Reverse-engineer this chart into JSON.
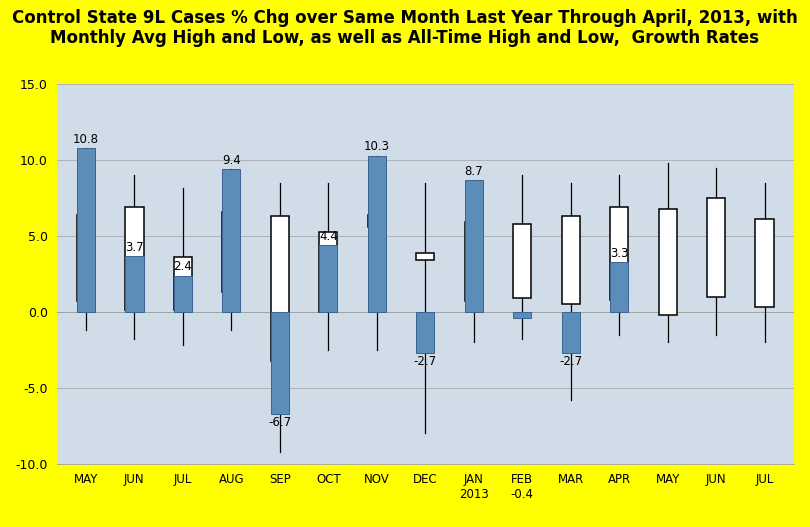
{
  "title": "Control State 9L Cases % Chg over Same Month Last Year Through April, 2013, with\nMonthly Avg High and Low, as well as All-Time High and Low,  Growth Rates",
  "title_fontsize": 12,
  "background_color": "#FFFF00",
  "plot_bg_color": "#D0DCE8",
  "ylim": [
    -10.0,
    15.0
  ],
  "yticks": [
    -10.0,
    -5.0,
    0.0,
    5.0,
    10.0,
    15.0
  ],
  "months": [
    "MAY",
    "JUN",
    "JUL",
    "AUG",
    "SEP",
    "OCT",
    "NOV",
    "DEC",
    "JAN\n2013",
    "FEB\n-0.4",
    "MAR",
    "APR",
    "MAY",
    "JUN",
    "JUL"
  ],
  "bar_values": [
    10.8,
    3.7,
    2.4,
    9.4,
    -6.7,
    4.4,
    10.3,
    -2.7,
    8.7,
    -0.4,
    -2.7,
    3.3,
    null,
    null,
    null
  ],
  "bar_color": "#5B8DB8",
  "bar_edge_color": "#3A6490",
  "bar_width": 0.38,
  "box_low": [
    0.7,
    0.1,
    0.1,
    1.3,
    -3.2,
    0.0,
    5.6,
    3.4,
    0.7,
    0.9,
    0.5,
    0.8,
    -0.2,
    1.0,
    0.3
  ],
  "box_high": [
    6.4,
    6.9,
    3.6,
    6.6,
    6.3,
    5.3,
    6.4,
    3.9,
    5.9,
    5.8,
    6.3,
    6.9,
    6.8,
    7.5,
    6.1
  ],
  "whisker_low": [
    -1.2,
    -1.8,
    -2.2,
    -1.2,
    -9.2,
    -2.5,
    -2.5,
    -8.0,
    -2.0,
    -1.8,
    -5.8,
    -1.5,
    -2.0,
    -1.5,
    -2.0
  ],
  "whisker_high": [
    10.8,
    9.0,
    8.2,
    9.4,
    8.5,
    8.5,
    10.3,
    8.5,
    8.7,
    9.0,
    8.5,
    9.0,
    9.8,
    9.5,
    8.5
  ],
  "bar_labels": [
    "10.8",
    "3.7",
    "2.4",
    "9.4",
    "-6.7",
    "4.4",
    "10.3",
    "-2.7",
    "8.7",
    "",
    "-2.7",
    "3.3",
    "",
    "",
    ""
  ],
  "box_width": 0.38
}
